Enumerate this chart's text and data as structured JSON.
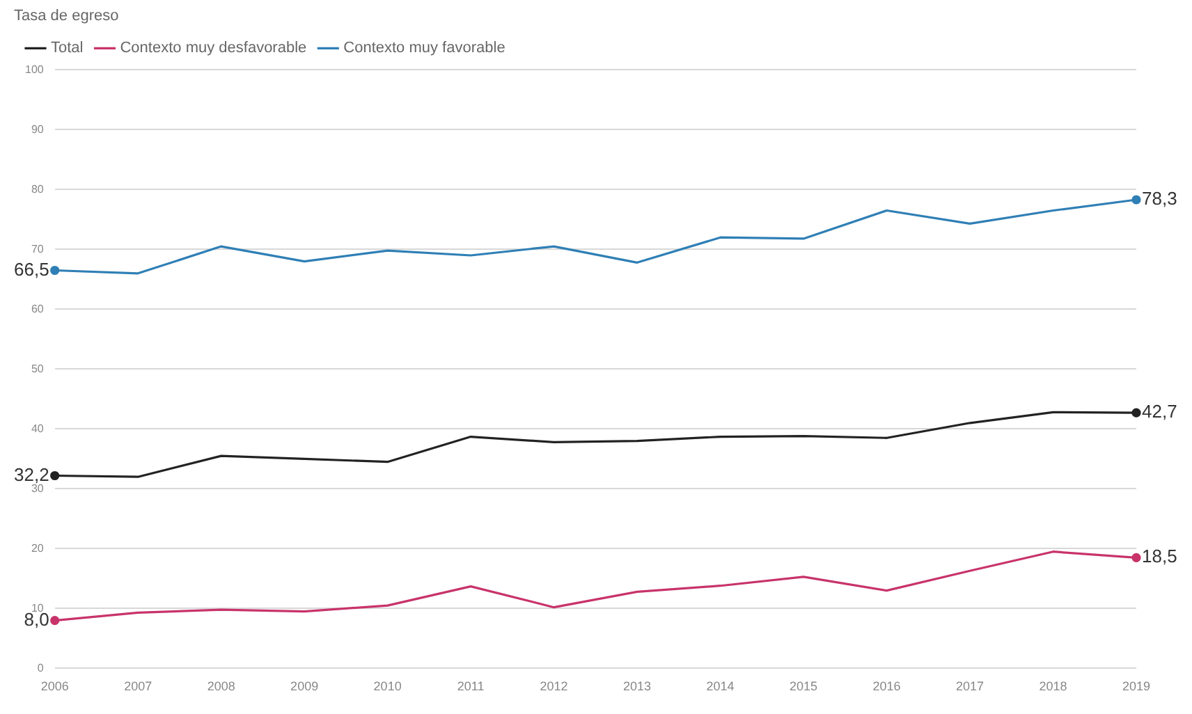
{
  "chart_data": {
    "type": "line",
    "legend_title": "Tasa de egreso",
    "legend": "top left",
    "grid": "y",
    "categories": [
      "2006",
      "2007",
      "2008",
      "2009",
      "2010",
      "2011",
      "2012",
      "2013",
      "2014",
      "2015",
      "2016",
      "2017",
      "2018",
      "2019"
    ],
    "ylim": [
      0,
      100
    ],
    "yticks": [
      0,
      10,
      20,
      30,
      40,
      50,
      60,
      70,
      80,
      90,
      100
    ],
    "series": [
      {
        "name": "Total",
        "color": "#222222",
        "values": [
          32.2,
          32,
          35.5,
          35,
          34.5,
          38.7,
          37.8,
          38,
          38.7,
          38.8,
          38.5,
          41,
          42.8,
          42.7
        ],
        "value_labels": [
          "32,2",
          null,
          null,
          null,
          null,
          null,
          null,
          null,
          null,
          null,
          null,
          null,
          null,
          "42,7"
        ]
      },
      {
        "name": "Contexto muy desfavorable",
        "color": "#c8336a",
        "values": [
          8.0,
          9.3,
          9.8,
          9.5,
          10.5,
          13.7,
          10.2,
          12.8,
          13.8,
          15.3,
          13,
          16.3,
          19.5,
          18.5
        ],
        "value_labels": [
          "8,0",
          null,
          null,
          null,
          null,
          null,
          null,
          null,
          null,
          null,
          null,
          null,
          null,
          "18,5"
        ]
      },
      {
        "name": "Contexto muy favorable",
        "color": "#2f7fb5",
        "values": [
          66.5,
          66,
          70.5,
          68,
          69.8,
          69,
          70.5,
          67.8,
          72,
          71.8,
          76.5,
          74.3,
          76.5,
          78.3
        ],
        "value_labels": [
          "66,5",
          null,
          null,
          null,
          null,
          null,
          null,
          null,
          null,
          null,
          null,
          null,
          null,
          "78,3"
        ]
      }
    ]
  }
}
